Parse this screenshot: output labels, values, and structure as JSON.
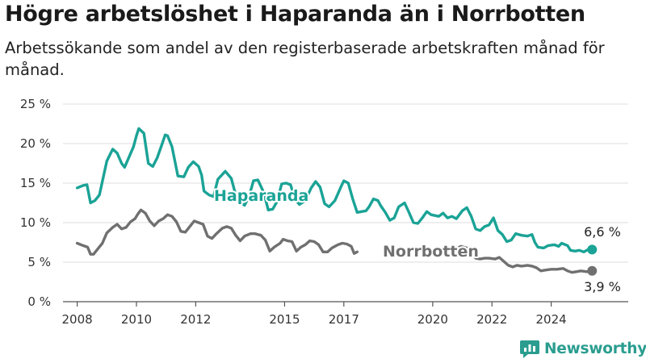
{
  "title": "Högre arbetslöshet i Haparanda än i Norrbotten",
  "subtitle": "Arbetssökande som andel av den registerbaserade arbetskraften månad för månad.",
  "brand": "Newsworthy",
  "colors": {
    "haparanda": "#1aa396",
    "norrbotten": "#707070",
    "grid": "#dddddd",
    "brand": "#2a9d8f"
  },
  "chart_data": {
    "type": "line",
    "title": "Högre arbetslöshet i Haparanda än i Norrbotten",
    "subtitle": "Arbetssökande som andel av den registerbaserade arbetskraften månad för månad.",
    "xlabel": "",
    "ylabel": "",
    "ylim": [
      0,
      25
    ],
    "y_ticks": [
      "0 %",
      "5 %",
      "10 %",
      "15 %",
      "20 %",
      "25 %"
    ],
    "x_ticks": [
      "2008",
      "2010",
      "2012",
      "2015",
      "2017",
      "2020",
      "2022",
      "2024"
    ],
    "grid": "horizontal",
    "series": [
      {
        "name": "Haparanda",
        "end_label": "6,6 %",
        "points": [
          [
            2008.0,
            14.4
          ],
          [
            2008.2,
            14.7
          ],
          [
            2008.33,
            14.8
          ],
          [
            2008.45,
            12.5
          ],
          [
            2008.6,
            12.8
          ],
          [
            2008.75,
            13.5
          ],
          [
            2009.0,
            17.8
          ],
          [
            2009.2,
            19.3
          ],
          [
            2009.35,
            18.8
          ],
          [
            2009.5,
            17.5
          ],
          [
            2009.6,
            17.0
          ],
          [
            2009.75,
            18.3
          ],
          [
            2009.9,
            19.6
          ],
          [
            2010.0,
            21.0
          ],
          [
            2010.08,
            21.9
          ],
          [
            2010.25,
            21.3
          ],
          [
            2010.4,
            17.5
          ],
          [
            2010.55,
            17.1
          ],
          [
            2010.7,
            18.2
          ],
          [
            2010.85,
            19.8
          ],
          [
            2010.97,
            21.1
          ],
          [
            2011.05,
            21.0
          ],
          [
            2011.2,
            19.6
          ],
          [
            2011.4,
            15.9
          ],
          [
            2011.6,
            15.8
          ],
          [
            2011.75,
            17.0
          ],
          [
            2011.92,
            17.7
          ],
          [
            2012.1,
            17.1
          ],
          [
            2012.2,
            16.0
          ],
          [
            2012.28,
            14.0
          ],
          [
            2012.45,
            13.5
          ],
          [
            2012.6,
            13.3
          ],
          [
            2012.75,
            15.5
          ],
          [
            2013.0,
            16.5
          ],
          [
            2013.2,
            15.6
          ],
          [
            2013.35,
            13.5
          ],
          [
            2013.5,
            12.5
          ],
          [
            2013.65,
            12.2
          ],
          [
            2013.8,
            13.3
          ],
          [
            2013.95,
            15.3
          ],
          [
            2014.1,
            15.4
          ],
          [
            2014.3,
            13.8
          ],
          [
            2014.45,
            11.6
          ],
          [
            2014.6,
            11.7
          ],
          [
            2014.75,
            12.7
          ],
          [
            2014.9,
            14.9
          ],
          [
            2015.05,
            15.0
          ],
          [
            2015.2,
            14.8
          ],
          [
            2015.35,
            13.0
          ],
          [
            2015.5,
            12.3
          ],
          [
            2015.7,
            12.8
          ],
          [
            2015.9,
            14.4
          ],
          [
            2016.05,
            15.2
          ],
          [
            2016.2,
            14.5
          ],
          [
            2016.35,
            12.4
          ],
          [
            2016.5,
            12.0
          ],
          [
            2016.7,
            12.8
          ],
          [
            2016.9,
            14.5
          ],
          [
            2017.0,
            15.3
          ],
          [
            2017.15,
            15.0
          ],
          [
            2017.3,
            13.0
          ],
          [
            2017.45,
            11.3
          ],
          [
            2017.6,
            11.4
          ],
          [
            2017.75,
            11.5
          ],
          [
            2017.85,
            12.0
          ],
          [
            2018.0,
            13.0
          ],
          [
            2018.15,
            12.8
          ],
          [
            2018.25,
            12.1
          ],
          [
            2018.4,
            11.3
          ],
          [
            2018.55,
            10.3
          ],
          [
            2018.7,
            10.6
          ],
          [
            2018.85,
            12.0
          ],
          [
            2019.05,
            12.5
          ],
          [
            2019.2,
            11.3
          ],
          [
            2019.35,
            10.0
          ],
          [
            2019.5,
            9.9
          ],
          [
            2019.65,
            10.6
          ],
          [
            2019.8,
            11.4
          ],
          [
            2019.95,
            11.0
          ],
          [
            2020.2,
            10.8
          ],
          [
            2020.35,
            11.2
          ],
          [
            2020.5,
            10.6
          ],
          [
            2020.65,
            10.8
          ],
          [
            2020.8,
            10.5
          ],
          [
            2021.0,
            11.5
          ],
          [
            2021.15,
            11.9
          ],
          [
            2021.3,
            10.8
          ],
          [
            2021.45,
            9.2
          ],
          [
            2021.6,
            9.0
          ],
          [
            2021.75,
            9.5
          ],
          [
            2021.9,
            9.7
          ],
          [
            2022.05,
            10.6
          ],
          [
            2022.2,
            9.0
          ],
          [
            2022.35,
            8.5
          ],
          [
            2022.5,
            7.6
          ],
          [
            2022.65,
            7.8
          ],
          [
            2022.8,
            8.6
          ],
          [
            2023.0,
            8.4
          ],
          [
            2023.2,
            8.3
          ],
          [
            2023.35,
            8.5
          ],
          [
            2023.45,
            7.5
          ],
          [
            2023.55,
            6.9
          ],
          [
            2023.75,
            6.8
          ],
          [
            2023.9,
            7.1
          ],
          [
            2024.1,
            7.2
          ],
          [
            2024.25,
            7.0
          ],
          [
            2024.35,
            7.4
          ],
          [
            2024.55,
            7.1
          ],
          [
            2024.65,
            6.5
          ],
          [
            2024.8,
            6.4
          ],
          [
            2024.95,
            6.5
          ],
          [
            2025.1,
            6.3
          ],
          [
            2025.25,
            6.6
          ],
          [
            2025.38,
            6.6
          ]
        ]
      },
      {
        "name": "Norrbotten",
        "end_label": "3,9 %",
        "points": [
          [
            2008.0,
            7.4
          ],
          [
            2008.2,
            7.1
          ],
          [
            2008.35,
            6.9
          ],
          [
            2008.45,
            6.0
          ],
          [
            2008.55,
            6.0
          ],
          [
            2008.7,
            6.7
          ],
          [
            2008.85,
            7.4
          ],
          [
            2009.0,
            8.7
          ],
          [
            2009.2,
            9.4
          ],
          [
            2009.35,
            9.8
          ],
          [
            2009.5,
            9.2
          ],
          [
            2009.65,
            9.4
          ],
          [
            2009.8,
            10.1
          ],
          [
            2009.95,
            10.5
          ],
          [
            2010.05,
            11.1
          ],
          [
            2010.15,
            11.6
          ],
          [
            2010.3,
            11.2
          ],
          [
            2010.45,
            10.2
          ],
          [
            2010.6,
            9.6
          ],
          [
            2010.75,
            10.2
          ],
          [
            2010.9,
            10.5
          ],
          [
            2011.05,
            11.0
          ],
          [
            2011.2,
            10.8
          ],
          [
            2011.35,
            10.1
          ],
          [
            2011.5,
            8.9
          ],
          [
            2011.65,
            8.8
          ],
          [
            2011.8,
            9.5
          ],
          [
            2011.95,
            10.2
          ],
          [
            2012.1,
            10.0
          ],
          [
            2012.25,
            9.8
          ],
          [
            2012.4,
            8.3
          ],
          [
            2012.55,
            8.0
          ],
          [
            2012.7,
            8.6
          ],
          [
            2012.9,
            9.3
          ],
          [
            2013.05,
            9.5
          ],
          [
            2013.2,
            9.3
          ],
          [
            2013.35,
            8.4
          ],
          [
            2013.5,
            7.7
          ],
          [
            2013.65,
            8.3
          ],
          [
            2013.85,
            8.6
          ],
          [
            2014.0,
            8.6
          ],
          [
            2014.2,
            8.4
          ],
          [
            2014.35,
            7.8
          ],
          [
            2014.5,
            6.4
          ],
          [
            2014.65,
            6.9
          ],
          [
            2014.85,
            7.4
          ],
          [
            2014.95,
            7.9
          ],
          [
            2015.1,
            7.7
          ],
          [
            2015.25,
            7.6
          ],
          [
            2015.4,
            6.4
          ],
          [
            2015.55,
            6.9
          ],
          [
            2015.7,
            7.2
          ],
          [
            2015.85,
            7.7
          ],
          [
            2016.0,
            7.6
          ],
          [
            2016.15,
            7.2
          ],
          [
            2016.3,
            6.3
          ],
          [
            2016.45,
            6.3
          ],
          [
            2016.6,
            6.8
          ],
          [
            2016.8,
            7.2
          ],
          [
            2016.95,
            7.4
          ],
          [
            2017.1,
            7.3
          ],
          [
            2017.25,
            7.0
          ],
          [
            2017.35,
            6.1
          ],
          [
            2017.45,
            6.3
          ]
        ],
        "points_after_gap": [
          [
            2020.8,
            6.7
          ],
          [
            2020.95,
            7.0
          ],
          [
            2021.15,
            6.8
          ],
          [
            2021.3,
            6.2
          ],
          [
            2021.45,
            5.5
          ],
          [
            2021.6,
            5.4
          ],
          [
            2021.75,
            5.5
          ],
          [
            2021.9,
            5.5
          ],
          [
            2022.1,
            5.4
          ],
          [
            2022.25,
            5.6
          ],
          [
            2022.4,
            5.1
          ],
          [
            2022.55,
            4.6
          ],
          [
            2022.7,
            4.4
          ],
          [
            2022.85,
            4.6
          ],
          [
            2023.0,
            4.5
          ],
          [
            2023.2,
            4.6
          ],
          [
            2023.35,
            4.5
          ],
          [
            2023.5,
            4.3
          ],
          [
            2023.65,
            3.9
          ],
          [
            2023.8,
            4.0
          ],
          [
            2024.0,
            4.1
          ],
          [
            2024.2,
            4.1
          ],
          [
            2024.4,
            4.2
          ],
          [
            2024.55,
            3.9
          ],
          [
            2024.7,
            3.7
          ],
          [
            2024.85,
            3.8
          ],
          [
            2025.0,
            3.9
          ],
          [
            2025.2,
            3.8
          ],
          [
            2025.38,
            3.9
          ]
        ]
      }
    ]
  }
}
